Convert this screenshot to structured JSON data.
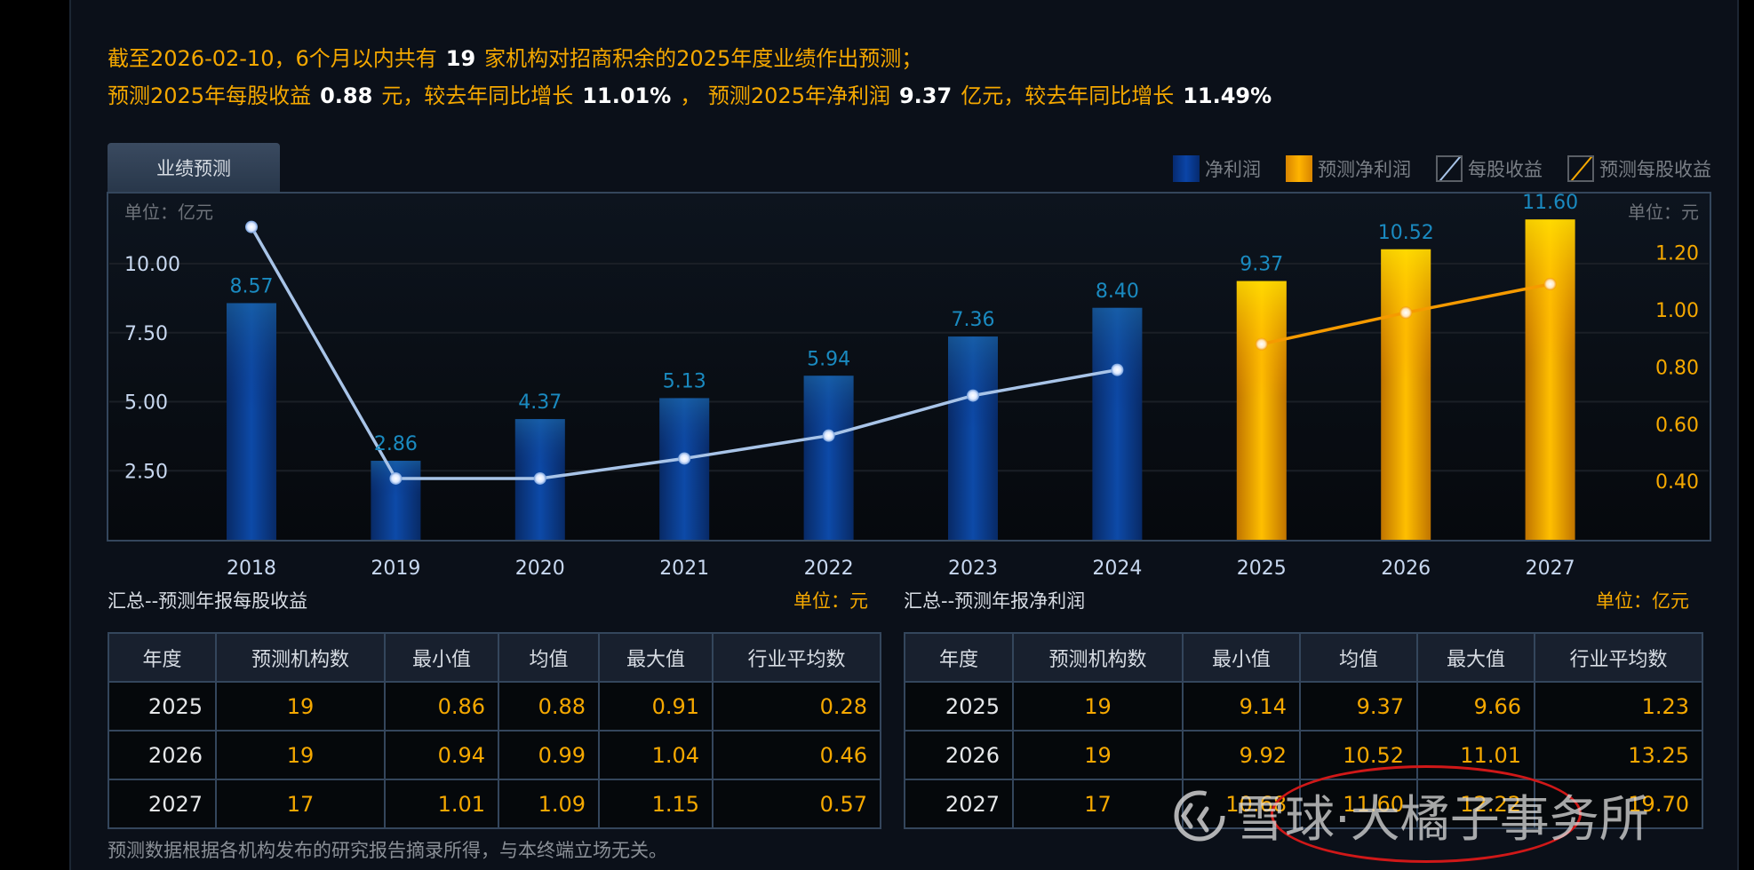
{
  "header": {
    "line1": {
      "pre": "截至2026-02-10，6个月以内共有",
      "count": "19",
      "post": "家机构对招商积余的2025年度业绩作出预测；"
    },
    "line2": {
      "a": "预测2025年每股收益",
      "eps": "0.88",
      "b": "元，较去年同比增长",
      "eps_growth": "11.01%",
      "c": "，  预测2025年净利润",
      "profit": "9.37",
      "d": "亿元，较去年同比增长",
      "profit_growth": "11.49%"
    }
  },
  "tab": {
    "label": "业绩预测"
  },
  "legend": [
    {
      "label": "净利润",
      "icon": "blue-bar-swatch"
    },
    {
      "label": "预测净利润",
      "icon": "gold-bar-swatch"
    },
    {
      "label": "每股收益",
      "icon": "blue-line-swatch"
    },
    {
      "label": "预测每股收益",
      "icon": "gold-line-swatch"
    }
  ],
  "colors": {
    "accent": "#f5a800",
    "bar_actual": "#0b45a8",
    "bar_forecast": "#ffc400",
    "eps_line": "#a8c4e8",
    "forecast_eps_line": "#f5a800",
    "value_label": "#1a8ac0"
  },
  "chart_data": {
    "type": "bar",
    "categories": [
      "2018",
      "2019",
      "2020",
      "2021",
      "2022",
      "2023",
      "2024",
      "2025",
      "2026",
      "2027"
    ],
    "series": [
      {
        "name": "净利润",
        "type": "bar",
        "axis": "left",
        "values": [
          8.57,
          2.86,
          4.37,
          5.13,
          5.94,
          7.36,
          8.4,
          null,
          null,
          null
        ]
      },
      {
        "name": "预测净利润",
        "type": "bar",
        "axis": "left",
        "values": [
          null,
          null,
          null,
          null,
          null,
          null,
          null,
          9.37,
          10.52,
          11.6
        ]
      },
      {
        "name": "每股收益",
        "type": "line",
        "axis": "right",
        "values": [
          1.29,
          0.41,
          0.41,
          0.48,
          0.56,
          0.7,
          0.79,
          null,
          null,
          null
        ]
      },
      {
        "name": "预测每股收益",
        "type": "line",
        "axis": "right",
        "values": [
          null,
          null,
          null,
          null,
          null,
          null,
          null,
          0.88,
          0.99,
          1.09
        ]
      }
    ],
    "bar_labels": [
      "8.57",
      "2.86",
      "4.37",
      "5.13",
      "5.94",
      "7.36",
      "8.40",
      "9.37",
      "10.52",
      "11.60"
    ],
    "left_axis": {
      "unit_label": "单位：亿元",
      "ticks": [
        2.5,
        5.0,
        7.5,
        10.0
      ],
      "tick_labels": [
        "2.50",
        "5.00",
        "7.50",
        "10.00"
      ],
      "range": [
        0,
        10
      ]
    },
    "right_axis": {
      "unit_label": "单位：元",
      "ticks": [
        0.4,
        0.6,
        0.8,
        1.0,
        1.2
      ],
      "tick_labels": [
        "0.40",
        "0.60",
        "0.80",
        "1.00",
        "1.20"
      ],
      "range": [
        0,
        1.2
      ]
    },
    "grid": true,
    "legend_position": "top-right"
  },
  "eps_table": {
    "title": "汇总--预测年报每股收益",
    "unit": "单位：元",
    "columns": [
      "年度",
      "预测机构数",
      "最小值",
      "均值",
      "最大值",
      "行业平均数"
    ],
    "rows": [
      [
        "2025",
        "19",
        "0.86",
        "0.88",
        "0.91",
        "0.28"
      ],
      [
        "2026",
        "19",
        "0.94",
        "0.99",
        "1.04",
        "0.46"
      ],
      [
        "2027",
        "17",
        "1.01",
        "1.09",
        "1.15",
        "0.57"
      ]
    ]
  },
  "profit_table": {
    "title": "汇总--预测年报净利润",
    "unit": "单位：亿元",
    "columns": [
      "年度",
      "预测机构数",
      "最小值",
      "均值",
      "最大值",
      "行业平均数"
    ],
    "rows": [
      [
        "2025",
        "19",
        "9.14",
        "9.37",
        "9.66",
        "1.23"
      ],
      [
        "2026",
        "19",
        "9.92",
        "10.52",
        "11.01",
        "13.25"
      ],
      [
        "2027",
        "17",
        "10.68",
        "11.60",
        "12.22",
        "19.70"
      ]
    ]
  },
  "footnote": "预测数据根据各机构发布的研究报告摘录所得，与本终端立场无关。",
  "watermark": {
    "text": "雪球·大橘子事务所"
  }
}
